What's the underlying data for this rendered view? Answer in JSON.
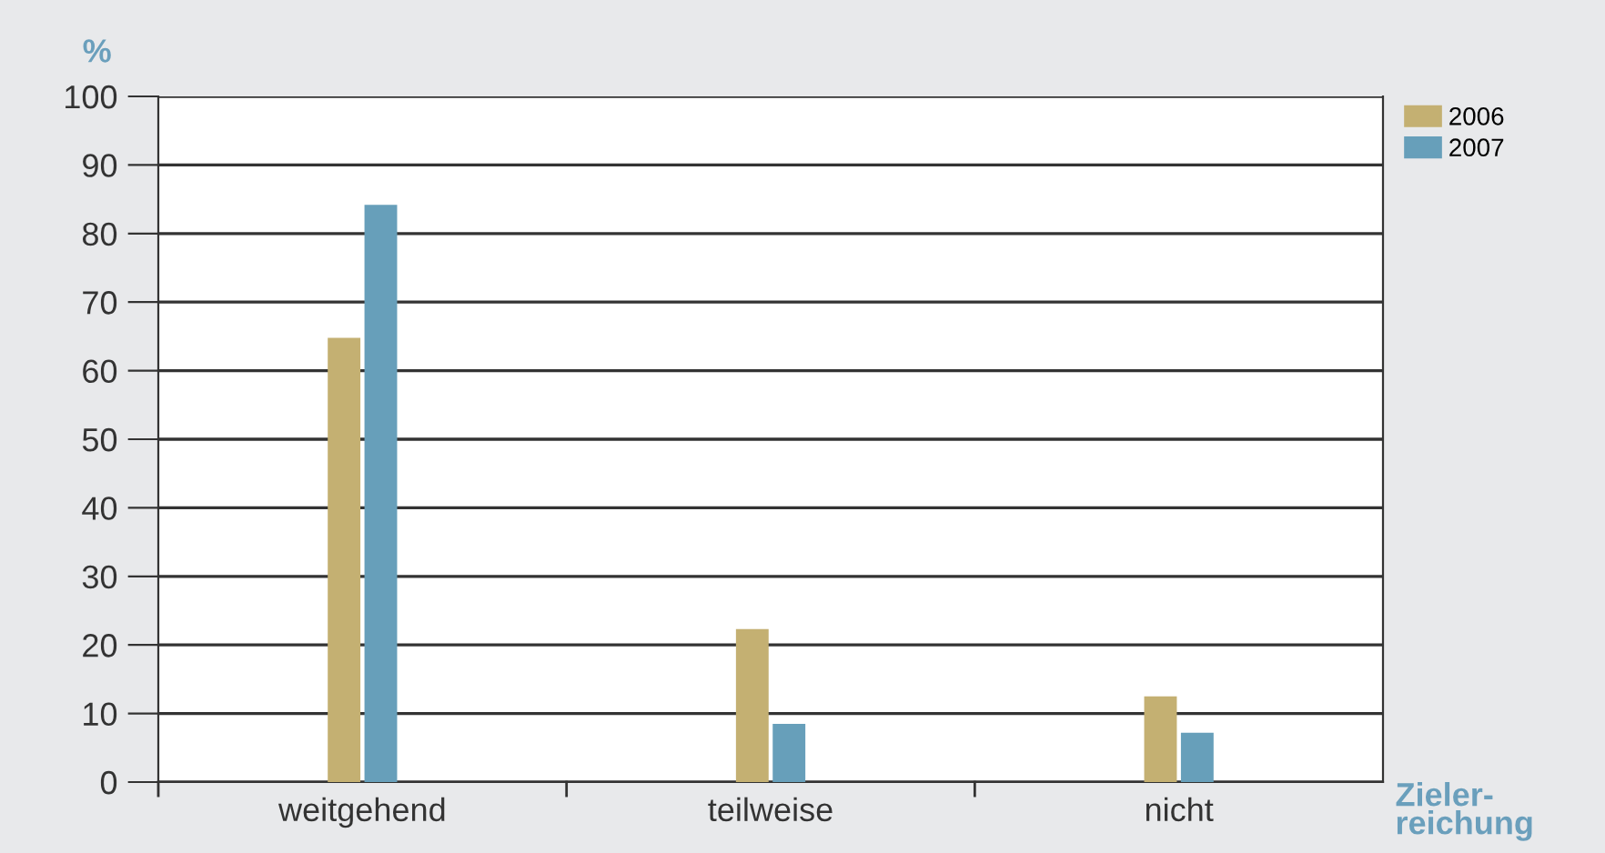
{
  "chart_data": {
    "type": "bar",
    "ylabel": "%",
    "xlabel": "Zieler-\nreichung",
    "categories": [
      "weitgehend",
      "teilweise",
      "nicht"
    ],
    "series": [
      {
        "name": "2006",
        "color": "#c4b072",
        "values": [
          64.8,
          22.3,
          12.5
        ]
      },
      {
        "name": "2007",
        "color": "#679fba",
        "values": [
          84.2,
          8.5,
          7.2
        ]
      }
    ],
    "ylim": [
      0,
      100
    ],
    "yticks": [
      0,
      10,
      20,
      30,
      40,
      50,
      60,
      70,
      80,
      90,
      100
    ],
    "grid": "y",
    "legend": "top right"
  }
}
